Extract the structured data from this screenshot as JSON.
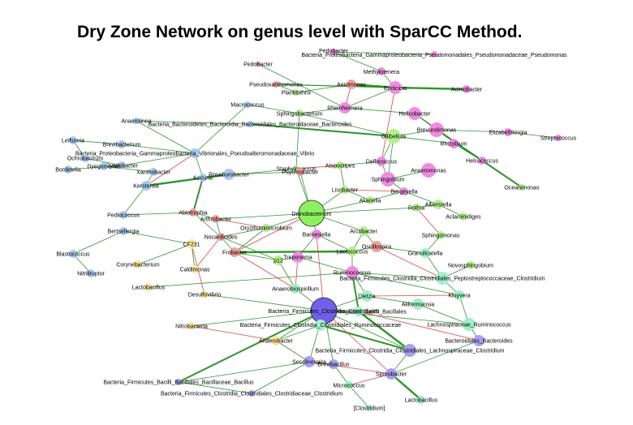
{
  "title": "Dry Zone Network on genus level with SparCC Method.",
  "colors": {
    "positive_edge": "#1a8a1a",
    "negative_edge": "#e03030",
    "blue": "#a8c8f0",
    "pink": "#f08ce0",
    "green": "#b4f08c",
    "salmon": "#f0a0a0",
    "yellow": "#f8e8a0",
    "teal": "#a0f0c8",
    "purple": "#a8a0f0",
    "hub_green": "#8cf060",
    "hub_purple": "#7060e8"
  },
  "nodes": [
    {
      "id": "pedobacter1",
      "label": "Pedobacter",
      "c": "pink"
    },
    {
      "id": "pseudomonas",
      "label": "Bacteria_Proteobacteria_Gammaproteobacteria_Pseudomonadales_Pseudomonadaceae_Pseudomonas",
      "c": "pink"
    },
    {
      "id": "pedobacter2",
      "label": "Pedobacter",
      "c": "pink"
    },
    {
      "id": "methylotenera",
      "label": "Methylotenera",
      "c": "pink"
    },
    {
      "id": "pseudoxanthomonas",
      "label": "Pseudoxanthomonas",
      "c": "salmon"
    },
    {
      "id": "aeromonas",
      "label": "Aeromonas",
      "c": "salmon"
    },
    {
      "id": "planktothrix",
      "label": "Planktothrix",
      "c": "green"
    },
    {
      "id": "emticicia",
      "label": "Emticicia",
      "c": "pink"
    },
    {
      "id": "aciniobacter",
      "label": "Aciniobacter",
      "c": "pink"
    },
    {
      "id": "macrococcus",
      "label": "Macrococcus",
      "c": "blue"
    },
    {
      "id": "rheinheimera",
      "label": "Rheinheimera",
      "c": "pink"
    },
    {
      "id": "sphingobacterium",
      "label": "Sphingobacterium",
      "c": "green"
    },
    {
      "id": "helicobacter",
      "label": "Helicobacter",
      "c": "pink"
    },
    {
      "id": "anaerolinea",
      "label": "Anaerolinea",
      "c": "blue"
    },
    {
      "id": "bacteroides1",
      "label": "Bacteria_Bacteroidetes_Bacteroidia_Bacteroidales_Bacteroidaceae_Bacteroides",
      "c": "blue"
    },
    {
      "id": "brevundimonas",
      "label": "Brevundimonas",
      "c": "pink"
    },
    {
      "id": "elizabethkingia",
      "label": "Elizabethkingia",
      "c": "pink"
    },
    {
      "id": "streptococcus",
      "label": "Streptococcus",
      "c": "pink"
    },
    {
      "id": "gilibellula",
      "label": "Gilibellula",
      "c": "green"
    },
    {
      "id": "rhizobium",
      "label": "Rhizobium",
      "c": "pink"
    },
    {
      "id": "leifsonia",
      "label": "Leifsonia",
      "c": "blue"
    },
    {
      "id": "brevibacterium",
      "label": "Brevibacterium",
      "c": "blue"
    },
    {
      "id": "vibrio",
      "label": "Bacteria_Proteobacteria_Gammaproteobacteria_Vibrionales_Pseudoalteromonadaceae_Vibrio",
      "c": "blue"
    },
    {
      "id": "ochrobactrum",
      "label": "Ochrobactrum",
      "c": "blue"
    },
    {
      "id": "helcococcus",
      "label": "Helcococcus",
      "c": "pink"
    },
    {
      "id": "dyadobacter",
      "label": "Dyadobacter",
      "c": "blue"
    },
    {
      "id": "dyegomonas",
      "label": "Dyegomonas",
      "c": "blue"
    },
    {
      "id": "atopostipes",
      "label": "Atopostipes",
      "c": "green"
    },
    {
      "id": "delfococcus",
      "label": "Delfococcus",
      "c": "pink"
    },
    {
      "id": "bordetella",
      "label": "Bordetella",
      "c": "blue"
    },
    {
      "id": "xanthobacter",
      "label": "Xanthobacter",
      "c": "blue"
    },
    {
      "id": "kocuria",
      "label": "Kocuria",
      "c": "blue"
    },
    {
      "id": "roseburobacter",
      "label": "Roseburobacter",
      "c": "blue"
    },
    {
      "id": "staphylococcus",
      "label": "Staphylococcus",
      "c": "green"
    },
    {
      "id": "psychrobacter",
      "label": "Psychrobacter",
      "c": "salmon"
    },
    {
      "id": "sphingobium",
      "label": "Sphingobium",
      "c": "pink"
    },
    {
      "id": "anaeromonas",
      "label": "Anaeromonas",
      "c": "pink"
    },
    {
      "id": "kerstersia",
      "label": "Kerstersia",
      "c": "blue"
    },
    {
      "id": "oceanimonas",
      "label": "Oceanimonas",
      "c": "green"
    },
    {
      "id": "lisobacter",
      "label": "Lisobacter",
      "c": "green"
    },
    {
      "id": "bergeyella",
      "label": "Bergeyella",
      "c": "pink"
    },
    {
      "id": "akanella",
      "label": "Akanella",
      "c": "green"
    },
    {
      "id": "alberstella",
      "label": "Alberstella",
      "c": "green"
    },
    {
      "id": "rothia",
      "label": "Rothia",
      "c": "green"
    },
    {
      "id": "aclaminidiges",
      "label": "Aclaminidiges",
      "c": "green"
    },
    {
      "id": "pediococcus",
      "label": "Pediococcus",
      "c": "blue"
    },
    {
      "id": "abiotrophia",
      "label": "Abiotrophia",
      "c": "salmon"
    },
    {
      "id": "deinobacterium",
      "label": "Deinobacterium",
      "c": "hub_green"
    },
    {
      "id": "arthrobacter",
      "label": "Arthrobacter",
      "c": "salmon"
    },
    {
      "id": "oryzihumimicrobium",
      "label": "Oryzihumimicrobium",
      "c": "green"
    },
    {
      "id": "bertsellergia",
      "label": "Bertsellergia",
      "c": "blue"
    },
    {
      "id": "nocardioides",
      "label": "Nocardioides",
      "c": "salmon"
    },
    {
      "id": "barnesiella",
      "label": "Barnesiella",
      "c": "pink"
    },
    {
      "id": "arcobacter",
      "label": "Arcobacter",
      "c": "green"
    },
    {
      "id": "sphingomonas",
      "label": "Sphingomonas",
      "c": "green"
    },
    {
      "id": "cf231",
      "label": "CF231",
      "c": "yellow"
    },
    {
      "id": "blastococcus",
      "label": "Blastococcus",
      "c": "blue"
    },
    {
      "id": "frobacter",
      "label": "Frobacter",
      "c": "salmon"
    },
    {
      "id": "oscillospira",
      "label": "Oscillospira",
      "c": "salmon"
    },
    {
      "id": "granulicatella",
      "label": "Granulicatella",
      "c": "teal"
    },
    {
      "id": "lactococcus",
      "label": "Lactococcus",
      "c": "green"
    },
    {
      "id": "corynebacterium",
      "label": "Corynebacterium",
      "c": "yellow"
    },
    {
      "id": "caldimonas",
      "label": "Caldimonas",
      "c": "yellow"
    },
    {
      "id": "p12",
      "label": "p12",
      "c": "green"
    },
    {
      "id": "treponema",
      "label": "Treponema",
      "c": "pink"
    },
    {
      "id": "novosphingobium",
      "label": "Novosphingobium",
      "c": "green"
    },
    {
      "id": "nitriliruptor",
      "label": "Nitriliruptor",
      "c": "blue"
    },
    {
      "id": "ruminococcus1",
      "label": "Ruminococcus",
      "c": "pink"
    },
    {
      "id": "peptostrep",
      "label": "Bacteria_Firmicutes_Clostridia_Clostridiales_Peptostreptococcaceae_Clostridium",
      "c": "teal"
    },
    {
      "id": "lactobacillus",
      "label": "Lactobacillus",
      "c": "yellow"
    },
    {
      "id": "desulfovibrio",
      "label": "Desulfovibrio",
      "c": "yellow"
    },
    {
      "id": "anaerobiospirillum",
      "label": "Anaerobiospirillum",
      "c": "teal"
    },
    {
      "id": "kluyvera",
      "label": "Kluyvera",
      "c": "teal"
    },
    {
      "id": "dietzia",
      "label": "Dietzia",
      "c": "teal"
    },
    {
      "id": "akkermansia",
      "label": "Akkermansia",
      "c": "teal"
    },
    {
      "id": "rumbacilli",
      "label": "Bacteria_Firmicutes_Bacilli_Bacillales",
      "c": "teal"
    },
    {
      "id": "clostridiales",
      "label": "Bacteria_Firmicutes_Clostridia_Clostridiales",
      "c": "hub_purple"
    },
    {
      "id": "nitrobacteria",
      "label": "Nitrobacteria",
      "c": "yellow"
    },
    {
      "id": "lachno_rumino",
      "label": "Lachnospiraceae_Ruminococcus",
      "c": "teal"
    },
    {
      "id": "bac_clos_rum",
      "label": "Bacteria_Firmicutes_Clostridia_Clostridiales_Ruminococcaceae",
      "c": "teal"
    },
    {
      "id": "anaerobacter",
      "label": "Anaerobacter",
      "c": "yellow"
    },
    {
      "id": "clos_lachno_clos",
      "label": "Bacteria_Firmicutes_Clostridia_Clostridiales_Lachnospiraceae_Clostridium",
      "c": "purple"
    },
    {
      "id": "bacteroides2",
      "label": "Bacteroidales_Bacteroides",
      "c": "purple"
    },
    {
      "id": "sporobacter",
      "label": "Sporobacter",
      "c": "purple"
    },
    {
      "id": "secclinospira",
      "label": "Secclinospira",
      "c": "purple"
    },
    {
      "id": "brevibacillus",
      "label": "Brevibacillus",
      "c": "purple"
    },
    {
      "id": "bacillus",
      "label": "Bacteria_Firmicutes_Bacilli_Bacillales_Bacillaceae_Bacillus",
      "c": "purple"
    },
    {
      "id": "clostridiaceae",
      "label": "Bacteria_Firmicutes_Clostridia_Clostridiales_Clostridiaceae_Clostridium",
      "c": "purple"
    },
    {
      "id": "micrococcus",
      "label": "Micrococcus",
      "c": "teal"
    },
    {
      "id": "clostridium_b",
      "label": "[Clostridium]",
      "c": "teal"
    },
    {
      "id": "lactobacillus2",
      "label": "Lactobacillus",
      "c": "teal"
    }
  ]
}
